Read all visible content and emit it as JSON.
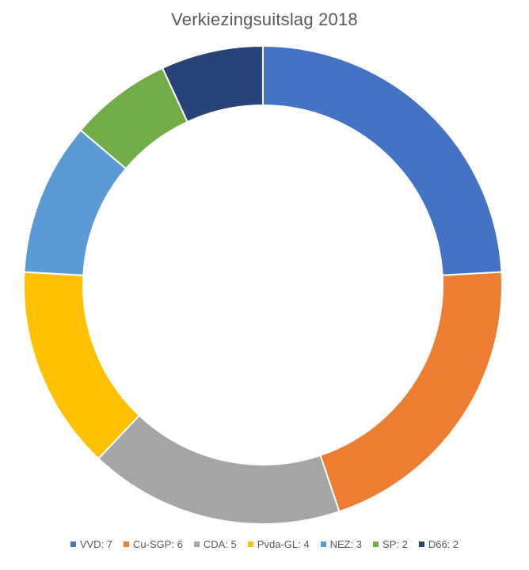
{
  "chart_data": {
    "type": "pie",
    "variant": "donut",
    "title": "Verkiezingsuitslag 2018",
    "categories": [
      "VVD",
      "Cu-SGP",
      "CDA",
      "Pvda-GL",
      "NEZ",
      "SP",
      "D66"
    ],
    "values": [
      7,
      6,
      5,
      4,
      3,
      2,
      2
    ],
    "colors": [
      "#4472C4",
      "#ED7D31",
      "#A5A5A5",
      "#FFC000",
      "#5B9BD5",
      "#70AD47",
      "#264478"
    ],
    "legend_labels": [
      "VVD: 7",
      "Cu-SGP: 6",
      "CDA: 5",
      "Pvda-GL: 4",
      "NEZ: 3",
      "SP: 2",
      "D66: 2"
    ],
    "legend_position": "bottom"
  }
}
